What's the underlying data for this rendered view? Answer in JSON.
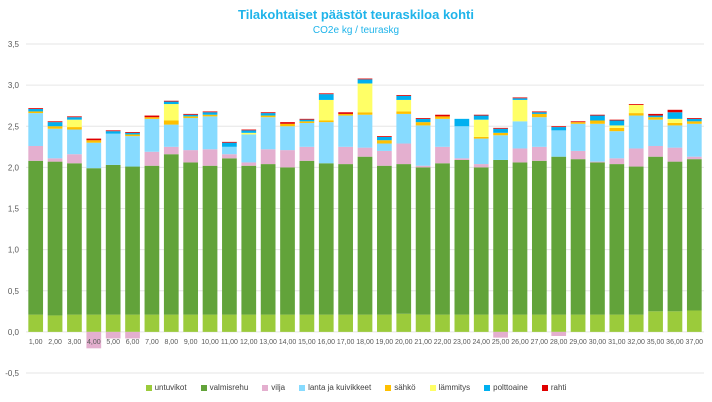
{
  "chart_data": {
    "type": "bar",
    "stacked": true,
    "title": "Tilakohtaiset päästöt teuraskiloa kohti",
    "subtitle": "CO2e kg / teuraskg",
    "xlabel": "",
    "ylabel": "",
    "ylim": [
      -0.5,
      3.5
    ],
    "yticks": [
      3.5,
      3.0,
      2.5,
      2.0,
      1.5,
      1.0,
      0.5,
      0.0,
      -0.5
    ],
    "ytick_labels": [
      "3,5",
      "3,0",
      "2,5",
      "2,0",
      "1,5",
      "1,0",
      "0,5",
      "0,0",
      "-0,5"
    ],
    "grid": true,
    "legend_position": "bottom",
    "categories": [
      "1,00",
      "2,00",
      "3,00",
      "4,00",
      "5,00",
      "6,00",
      "7,00",
      "8,00",
      "9,00",
      "10,00",
      "11,00",
      "12,00",
      "13,00",
      "14,00",
      "15,00",
      "16,00",
      "17,00",
      "18,00",
      "19,00",
      "20,00",
      "21,00",
      "22,00",
      "23,00",
      "24,00",
      "25,00",
      "26,00",
      "27,00",
      "28,00",
      "29,00",
      "30,00",
      "31,00",
      "32,00",
      "35,00",
      "36,00",
      "37,00"
    ],
    "series": [
      {
        "name": "untuvikot",
        "color": "#9bcb3b",
        "values": [
          0.21,
          0.2,
          0.21,
          0.21,
          0.21,
          0.21,
          0.21,
          0.21,
          0.21,
          0.21,
          0.21,
          0.21,
          0.21,
          0.21,
          0.21,
          0.21,
          0.21,
          0.21,
          0.21,
          0.22,
          0.21,
          0.21,
          0.21,
          0.21,
          0.21,
          0.21,
          0.21,
          0.21,
          0.21,
          0.21,
          0.21,
          0.21,
          0.25,
          0.25,
          0.26
        ]
      },
      {
        "name": "valmisrehu",
        "color": "#62a33a",
        "values": [
          1.87,
          1.87,
          1.84,
          1.78,
          1.82,
          1.8,
          1.81,
          1.95,
          1.85,
          1.81,
          1.9,
          1.81,
          1.83,
          1.79,
          1.87,
          1.84,
          1.83,
          1.92,
          1.81,
          1.82,
          1.79,
          1.84,
          1.88,
          1.79,
          1.88,
          1.85,
          1.87,
          1.92,
          1.89,
          1.85,
          1.83,
          1.8,
          1.88,
          1.82,
          1.84
        ]
      },
      {
        "name": "vilja",
        "color": "#e4afcf",
        "values": [
          0.18,
          0.04,
          0.11,
          -0.2,
          -0.08,
          -0.08,
          0.17,
          0.09,
          0.15,
          0.2,
          0.05,
          0.04,
          0.18,
          0.21,
          0.17,
          0.0,
          0.21,
          0.11,
          0.18,
          0.25,
          0.02,
          0.2,
          0.02,
          0.04,
          -0.07,
          0.17,
          0.17,
          -0.05,
          0.1,
          0.01,
          0.07,
          0.22,
          0.13,
          0.17,
          0.03
        ]
      },
      {
        "name": "lanta ja kuivikkeet",
        "color": "#87dbff",
        "values": [
          0.4,
          0.36,
          0.3,
          0.31,
          0.38,
          0.37,
          0.4,
          0.27,
          0.39,
          0.4,
          0.09,
          0.34,
          0.39,
          0.29,
          0.29,
          0.5,
          0.38,
          0.4,
          0.09,
          0.36,
          0.49,
          0.34,
          0.39,
          0.31,
          0.3,
          0.33,
          0.36,
          0.32,
          0.33,
          0.46,
          0.33,
          0.4,
          0.32,
          0.27,
          0.4
        ]
      },
      {
        "name": "sähkö",
        "color": "#ffc000",
        "values": [
          0.02,
          0.03,
          0.03,
          0.03,
          0.0,
          0.02,
          0.02,
          0.05,
          0.02,
          0.02,
          0.0,
          0.0,
          0.02,
          0.03,
          0.02,
          0.02,
          0.02,
          0.03,
          0.04,
          0.03,
          0.04,
          0.03,
          0.0,
          0.02,
          0.03,
          0.0,
          0.04,
          0.0,
          0.02,
          0.04,
          0.04,
          0.03,
          0.03,
          0.03,
          0.03
        ]
      },
      {
        "name": "lämmitys",
        "color": "#ffff66",
        "values": [
          0.0,
          0.0,
          0.09,
          0.0,
          0.0,
          0.0,
          0.0,
          0.2,
          0.0,
          0.0,
          0.0,
          0.02,
          0.0,
          0.0,
          0.0,
          0.25,
          0.0,
          0.35,
          0.0,
          0.14,
          0.0,
          0.0,
          0.0,
          0.21,
          0.0,
          0.26,
          0.0,
          0.0,
          0.0,
          0.0,
          0.03,
          0.1,
          0.0,
          0.05,
          0.0
        ]
      },
      {
        "name": "polttoaine",
        "color": "#00b0f0",
        "values": [
          0.03,
          0.05,
          0.03,
          0.0,
          0.03,
          0.02,
          0.0,
          0.03,
          0.02,
          0.03,
          0.05,
          0.03,
          0.03,
          0.0,
          0.02,
          0.07,
          0.0,
          0.05,
          0.04,
          0.05,
          0.04,
          0.0,
          0.09,
          0.05,
          0.05,
          0.02,
          0.02,
          0.04,
          0.0,
          0.06,
          0.06,
          0.0,
          0.02,
          0.08,
          0.03
        ]
      },
      {
        "name": "rahti",
        "color": "#e00000",
        "values": [
          0.01,
          0.01,
          0.01,
          0.02,
          0.01,
          0.01,
          0.02,
          0.01,
          0.01,
          0.01,
          0.01,
          0.01,
          0.01,
          0.02,
          0.01,
          0.01,
          0.02,
          0.01,
          0.01,
          0.01,
          0.01,
          0.02,
          0.0,
          0.01,
          0.01,
          0.01,
          0.01,
          0.01,
          0.01,
          0.01,
          0.01,
          0.01,
          0.02,
          0.03,
          0.01
        ]
      }
    ]
  }
}
